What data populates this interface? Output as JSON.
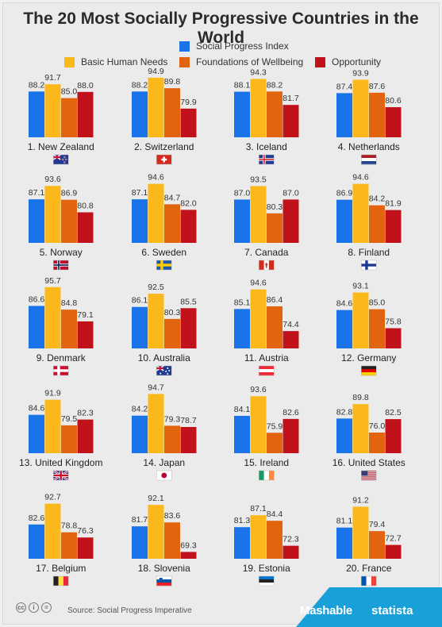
{
  "title": "The 20 Most Socially Progressive Countries in the World",
  "legend": [
    {
      "label": "Social Progress Index",
      "color": "#1a73e8"
    },
    {
      "label": "Basic Human Needs",
      "color": "#fbb81a"
    },
    {
      "label": "Foundations of Wellbeing",
      "color": "#e2640f"
    },
    {
      "label": "Opportunity",
      "color": "#c1121c"
    }
  ],
  "source": "Source: Social Progress Imperative",
  "brands": {
    "mashable": "Mashable",
    "statista": "statista"
  },
  "chart_data": {
    "type": "bar",
    "series": [
      {
        "name": "Social Progress Index",
        "color": "#1a73e8"
      },
      {
        "name": "Basic Human Needs",
        "color": "#fbb81a"
      },
      {
        "name": "Foundations of Wellbeing",
        "color": "#e2640f"
      },
      {
        "name": "Opportunity",
        "color": "#c1121c"
      }
    ],
    "countries": [
      {
        "label": "1. New Zealand",
        "flag": "new-zealand",
        "values": [
          88.2,
          91.7,
          85.0,
          88.0
        ]
      },
      {
        "label": "2. Switzerland",
        "flag": "switzerland",
        "values": [
          88.2,
          94.9,
          89.8,
          79.9
        ]
      },
      {
        "label": "3. Iceland",
        "flag": "iceland",
        "values": [
          88.1,
          94.3,
          88.2,
          81.7
        ]
      },
      {
        "label": "4. Netherlands",
        "flag": "netherlands",
        "values": [
          87.4,
          93.9,
          87.6,
          80.6
        ]
      },
      {
        "label": "5. Norway",
        "flag": "norway",
        "values": [
          87.1,
          93.6,
          86.9,
          80.8
        ]
      },
      {
        "label": "6. Sweden",
        "flag": "sweden",
        "values": [
          87.1,
          94.6,
          84.7,
          82.0
        ]
      },
      {
        "label": "7. Canada",
        "flag": "canada",
        "values": [
          87.0,
          93.5,
          80.3,
          87.0
        ]
      },
      {
        "label": "8. Finland",
        "flag": "finland",
        "values": [
          86.9,
          94.6,
          84.2,
          81.9
        ]
      },
      {
        "label": "9. Denmark",
        "flag": "denmark",
        "values": [
          86.6,
          95.7,
          84.8,
          79.1
        ]
      },
      {
        "label": "10. Australia",
        "flag": "australia",
        "values": [
          86.1,
          92.5,
          80.3,
          85.5
        ]
      },
      {
        "label": "11. Austria",
        "flag": "austria",
        "values": [
          85.1,
          94.6,
          86.4,
          74.4
        ]
      },
      {
        "label": "12. Germany",
        "flag": "germany",
        "values": [
          84.6,
          93.1,
          85.0,
          75.8
        ]
      },
      {
        "label": "13. United Kingdom",
        "flag": "united-kingdom",
        "values": [
          84.6,
          91.9,
          79.5,
          82.3
        ]
      },
      {
        "label": "14. Japan",
        "flag": "japan",
        "values": [
          84.2,
          94.7,
          79.3,
          78.7
        ]
      },
      {
        "label": "15. Ireland",
        "flag": "ireland",
        "values": [
          84.1,
          93.6,
          75.9,
          82.6
        ]
      },
      {
        "label": "16. United States",
        "flag": "united-states",
        "values": [
          82.8,
          89.8,
          76.0,
          82.5
        ]
      },
      {
        "label": "17. Belgium",
        "flag": "belgium",
        "values": [
          82.6,
          92.7,
          78.8,
          76.3
        ]
      },
      {
        "label": "18. Slovenia",
        "flag": "slovenia",
        "values": [
          81.7,
          92.1,
          83.6,
          69.3
        ]
      },
      {
        "label": "19. Estonia",
        "flag": "estonia",
        "values": [
          81.3,
          87.1,
          84.4,
          72.3
        ]
      },
      {
        "label": "20. France",
        "flag": "france",
        "values": [
          81.1,
          91.2,
          79.4,
          72.7
        ]
      }
    ]
  }
}
